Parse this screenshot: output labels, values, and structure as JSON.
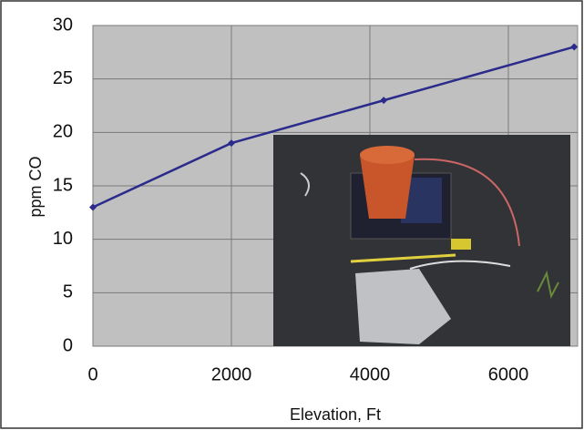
{
  "chart_data": {
    "type": "line",
    "y_label": "ppm CO",
    "x_label": "Elevation, Ft",
    "x": [
      0,
      2000,
      4200,
      6950
    ],
    "series": [
      {
        "color": "#2b2b8c",
        "values": [
          13,
          19,
          23,
          28
        ]
      }
    ],
    "xlim": [
      0,
      7000
    ],
    "xticks": [
      0,
      2000,
      4000,
      6000
    ],
    "ylim": [
      0,
      30
    ],
    "yticks": [
      0,
      5,
      10,
      15,
      20,
      25,
      30
    ],
    "grid": true
  }
}
